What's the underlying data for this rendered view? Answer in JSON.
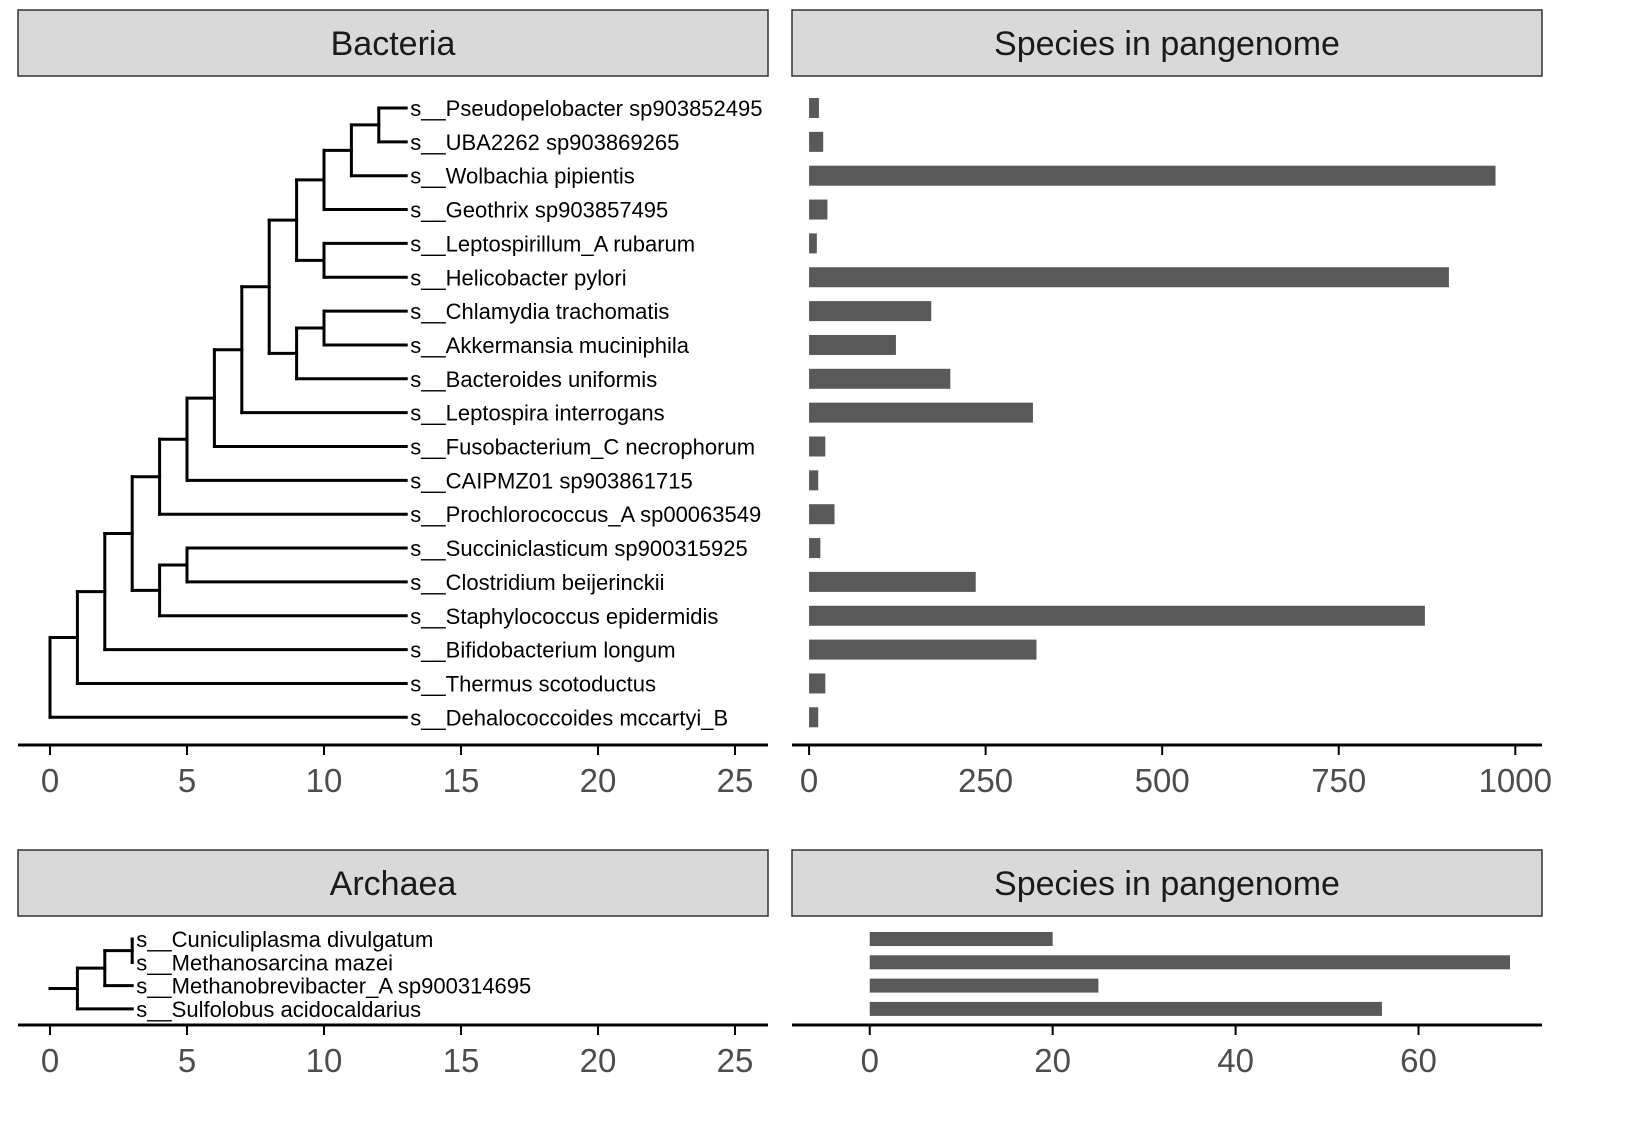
{
  "colors": {
    "strip_fill": "#d9d9d9",
    "strip_border": "#333333",
    "bar": "#595959",
    "tree": "#000000",
    "axis": "#000000",
    "tick_text": "#4d4d4d"
  },
  "chart_data": [
    {
      "type": "tree",
      "title": "Bacteria",
      "xlim": [
        0,
        26
      ],
      "x_ticks": [
        0,
        5,
        10,
        15,
        20,
        25
      ],
      "tips": [
        "s__Pseudopelobacter sp903852495",
        "s__UBA2262 sp903869265",
        "s__Wolbachia pipientis",
        "s__Geothrix sp903857495",
        "s__Leptospirillum_A rubarum",
        "s__Helicobacter pylori",
        "s__Chlamydia trachomatis",
        "s__Akkermansia muciniphila",
        "s__Bacteroides uniformis",
        "s__Leptospira interrogans",
        "s__Fusobacterium_C necrophorum",
        "s__CAIPMZ01 sp903861715",
        "s__Prochlorococcus_A sp00063549",
        "s__Succiniclasticum sp900315925",
        "s__Clostridium beijerinckii",
        "s__Staphylococcus epidermidis",
        "s__Bifidobacterium longum",
        "s__Thermus scotoductus",
        "s__Dehalococcoides mccartyi_B"
      ],
      "tip_depth": 13,
      "newick": "(((((((((((((s__Pseudopelobacter sp903852495,s__UBA2262 sp903869265),s__Wolbachia pipientis),s__Geothrix sp903857495),(s__Leptospirillum_A rubarum,s__Helicobacter pylori)),((s__Chlamydia trachomatis,s__Akkermansia muciniphila),s__Bacteroides uniformis)),s__Leptospira interrogans),s__Fusobacterium_C necrophorum),s__CAIPMZ01 sp903861715),s__Prochlorococcus_A sp00063549),((s__Succiniclasticum sp900315925,s__Clostridium beijerinckii),s__Staphylococcus epidermidis)),s__Bifidobacterium longum),s__Thermus scotoductus),s__Dehalococcoides mccartyi_B)"
    },
    {
      "type": "bar",
      "orientation": "horizontal",
      "title": "Species in pangenome",
      "categories": [
        "s__Pseudopelobacter sp903852495",
        "s__UBA2262 sp903869265",
        "s__Wolbachia pipientis",
        "s__Geothrix sp903857495",
        "s__Leptospirillum_A rubarum",
        "s__Helicobacter pylori",
        "s__Chlamydia trachomatis",
        "s__Akkermansia muciniphila",
        "s__Bacteroides uniformis",
        "s__Leptospira interrogans",
        "s__Fusobacterium_C necrophorum",
        "s__CAIPMZ01 sp903861715",
        "s__Prochlorococcus_A sp00063549",
        "s__Succiniclasticum sp900315925",
        "s__Clostridium beijerinckii",
        "s__Staphylococcus epidermidis",
        "s__Bifidobacterium longum",
        "s__Thermus scotoductus",
        "s__Dehalococcoides mccartyi_B"
      ],
      "values": [
        14,
        20,
        972,
        26,
        11,
        906,
        173,
        123,
        200,
        317,
        23,
        13,
        36,
        16,
        236,
        872,
        322,
        23,
        13
      ],
      "xlim": [
        -27,
        1018
      ],
      "x_ticks": [
        0,
        250,
        500,
        750,
        1000
      ]
    },
    {
      "type": "tree",
      "title": "Archaea",
      "xlim": [
        0,
        26
      ],
      "x_ticks": [
        0,
        5,
        10,
        15,
        20,
        25
      ],
      "tips": [
        "s__Cuniculiplasma divulgatum",
        "s__Methanosarcina mazei",
        "s__Methanobrevibacter_A sp900314695",
        "s__Sulfolobus acidocaldarius"
      ],
      "tip_depth": 3,
      "newick": "((((s__Cuniculiplasma divulgatum,s__Methanosarcina mazei),s__Methanobrevibacter_A sp900314695),s__Sulfolobus acidocaldarius)"
    },
    {
      "type": "bar",
      "orientation": "horizontal",
      "title": "Species in pangenome",
      "categories": [
        "s__Cuniculiplasma divulgatum",
        "s__Methanosarcina mazei",
        "s__Methanobrevibacter_A sp900314695",
        "s__Sulfolobus acidocaldarius"
      ],
      "values": [
        20,
        70,
        25,
        56
      ],
      "xlim": [
        -8.5,
        73.5
      ],
      "x_ticks": [
        0,
        20,
        40,
        60
      ]
    }
  ]
}
